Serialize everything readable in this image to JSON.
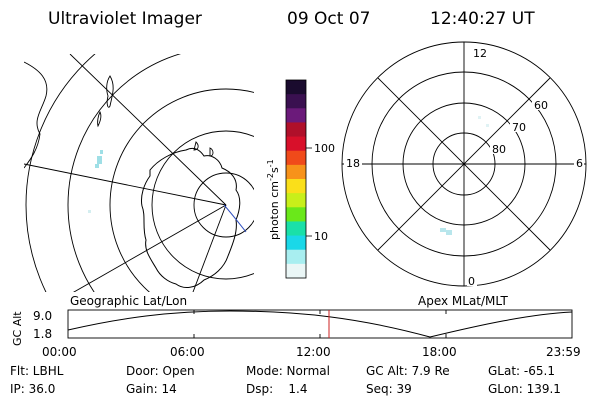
{
  "header": {
    "instrument": "Ultraviolet Imager",
    "date": "09 Oct 07",
    "time": "12:40:27 UT"
  },
  "colorbar": {
    "label": "photon cm",
    "label_sup1": "-2",
    "label_mid": "s",
    "label_sup2": "-1",
    "tick_high": "100",
    "tick_low": "10",
    "colors": [
      "#1a0b2e",
      "#3a1050",
      "#6b1a7a",
      "#b0102a",
      "#d8102a",
      "#f04a1a",
      "#f7921a",
      "#fadf1a",
      "#c8ef1a",
      "#6ae81a",
      "#1ae0a8",
      "#1ad8e8",
      "#a8eef0",
      "#eaf6f6"
    ]
  },
  "left_panel": {
    "title": "Geographic Lat/Lon"
  },
  "right_panel": {
    "title": "Apex MLat/MLT",
    "mlt_labels": {
      "top": "12",
      "left": "18",
      "right": "6",
      "bottom": "0"
    },
    "lat_labels": [
      "60",
      "70",
      "80"
    ]
  },
  "timeline": {
    "axis_title": "GC Alt",
    "y_labels": [
      "9.0",
      "1.8"
    ],
    "x_labels": [
      "00:00",
      "06:00",
      "12:00",
      "18:00",
      "23:59"
    ],
    "current_time_color": "#cc2020"
  },
  "footer": {
    "flt": "Flt: LBHL",
    "ip": "IP: 36.0",
    "door": "Door: Open",
    "gain": "Gain: 14",
    "mode": "Mode: Normal",
    "dsp": "Dsp:    1.4",
    "gc_alt": "GC Alt: 7.9 Re",
    "seq": "Seq: 39",
    "glat": "GLat: -65.1",
    "glon": "GLon: 139.1"
  }
}
